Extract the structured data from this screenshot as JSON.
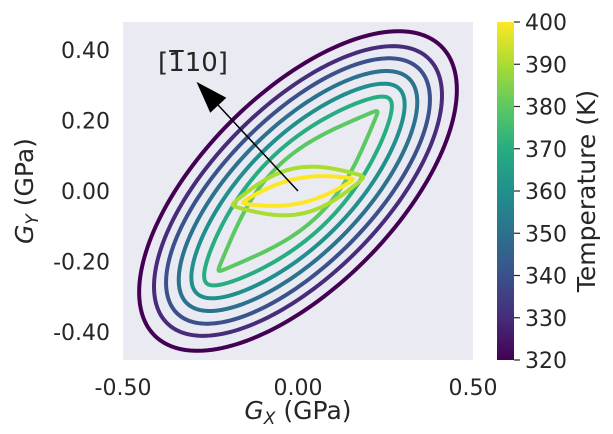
{
  "chart_data": {
    "type": "contour",
    "xlabel": "G_X (GPa)",
    "ylabel": "G_Y (GPa)",
    "xlim": [
      -0.5,
      0.5
    ],
    "ylim": [
      -0.48,
      0.48
    ],
    "xticks": [
      -0.5,
      0.0,
      0.5
    ],
    "xtick_labels": [
      "-0.50",
      "0.00",
      "0.50"
    ],
    "yticks": [
      -0.4,
      -0.2,
      0.0,
      0.2,
      0.4
    ],
    "ytick_labels": [
      "-0.40",
      "-0.20",
      "0.00",
      "0.20",
      "0.40"
    ],
    "grid": false,
    "background_color": "#eaeaf2",
    "colorbar": {
      "label": "Temperature (K)",
      "min": 320,
      "max": 400,
      "ticks": [
        320,
        330,
        340,
        350,
        360,
        370,
        380,
        390,
        400
      ],
      "tick_labels": [
        "320",
        "330",
        "340",
        "350",
        "360",
        "370",
        "380",
        "390",
        "400"
      ],
      "colormap": "viridis"
    },
    "annotation": {
      "text_parts": [
        "[",
        "1",
        "10]"
      ],
      "overbar_part_index": 1,
      "arrow_tail": [
        0.0,
        0.0
      ],
      "arrow_head": [
        -0.29,
        0.31
      ]
    },
    "contours": [
      {
        "temperature": 320,
        "color": "#440154",
        "major_axis": 0.58,
        "minor_axis": 0.275,
        "waist": 0.0,
        "angle_deg": 45
      },
      {
        "temperature": 330,
        "color": "#472c7a",
        "major_axis": 0.53,
        "minor_axis": 0.24,
        "waist": 0.0,
        "angle_deg": 45
      },
      {
        "temperature": 340,
        "color": "#3b518b",
        "major_axis": 0.49,
        "minor_axis": 0.21,
        "waist": 0.0,
        "angle_deg": 45
      },
      {
        "temperature": 350,
        "color": "#2c718e",
        "major_axis": 0.45,
        "minor_axis": 0.18,
        "waist": 0.03,
        "angle_deg": 45
      },
      {
        "temperature": 360,
        "color": "#21908d",
        "major_axis": 0.41,
        "minor_axis": 0.15,
        "waist": 0.08,
        "angle_deg": 45
      },
      {
        "temperature": 370,
        "color": "#27ad81",
        "major_axis": 0.37,
        "minor_axis": 0.12,
        "waist": 0.2,
        "angle_deg": 45
      },
      {
        "temperature": 380,
        "color": "#5cc863",
        "major_axis": 0.32,
        "minor_axis": 0.09,
        "waist": 0.45,
        "angle_deg": 45
      },
      {
        "temperature": 390,
        "color": "#aadc32",
        "major_axis": 0.19,
        "minor_axis": 0.065,
        "waist": 0.4,
        "angle_deg": 12
      },
      {
        "temperature": 400,
        "color": "#fde725",
        "major_axis": 0.16,
        "minor_axis": 0.035,
        "waist": 0.35,
        "angle_deg": 12
      }
    ]
  }
}
